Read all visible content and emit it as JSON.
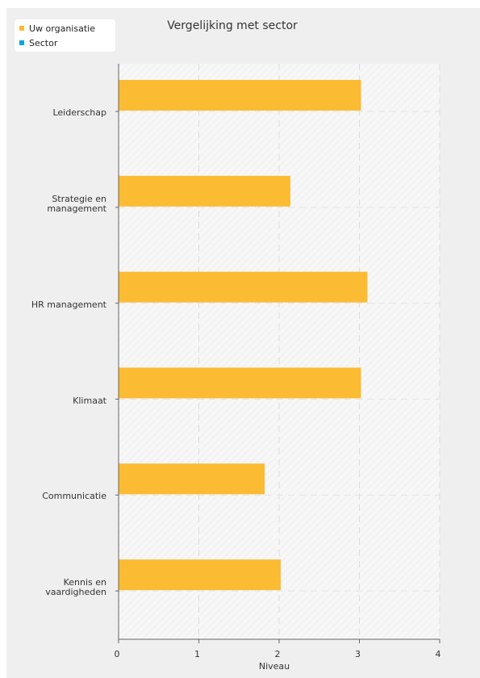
{
  "chart_data": {
    "type": "bar",
    "orientation": "horizontal",
    "title": "Vergelijking met sector",
    "xlabel": "Niveau",
    "ylabel": "",
    "xlim": [
      0,
      4
    ],
    "x_ticks": [
      "0",
      "1",
      "2",
      "3",
      "4"
    ],
    "categories": [
      "Leiderschap",
      "Strategie en\nmanagement",
      "HR management",
      "Klimaat",
      "Communicatie",
      "Kennis en\nvaardigheden"
    ],
    "series": [
      {
        "name": "Uw organisatie",
        "color": "#fbbb33",
        "values": [
          3.02,
          2.14,
          3.1,
          3.02,
          1.82,
          2.02
        ]
      },
      {
        "name": "Sector",
        "color": "#0aa4e0",
        "values": [
          null,
          null,
          null,
          null,
          null,
          null
        ]
      }
    ],
    "legend_position": "top-left",
    "grid": true
  }
}
